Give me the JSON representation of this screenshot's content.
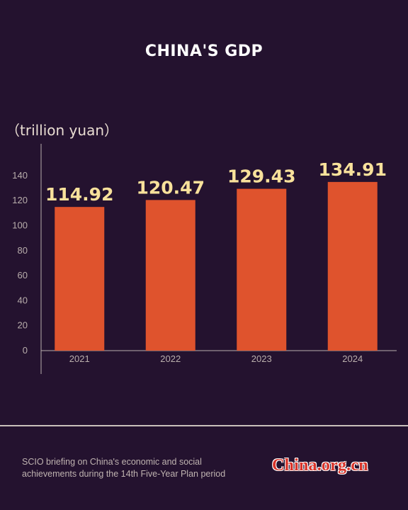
{
  "header": {
    "title": "CHINA'S GDP",
    "unit": "（trillion yuan）"
  },
  "chart_data": {
    "type": "bar",
    "title": "CHINA'S GDP",
    "ylabel": "（trillion yuan）",
    "xlabel": "",
    "categories": [
      "2021",
      "2022",
      "2023",
      "2024"
    ],
    "values": [
      114.92,
      120.47,
      129.43,
      134.91
    ],
    "value_labels": [
      "114.92",
      "120.47",
      "129.43",
      "134.91"
    ],
    "yticks": [
      0,
      20,
      40,
      60,
      80,
      100,
      120,
      140
    ],
    "ylim": [
      0,
      165
    ],
    "grid": false,
    "colors": {
      "bar": "#df532d",
      "value_label": "#f8e19b",
      "axis": "#b9aeac",
      "tick_label": "#b9aeac"
    }
  },
  "footer": {
    "line1": "SCIO briefing on China's economic and social",
    "line2": "achievements during the 14th Five-Year Plan period",
    "logo": "China.org.cn"
  }
}
